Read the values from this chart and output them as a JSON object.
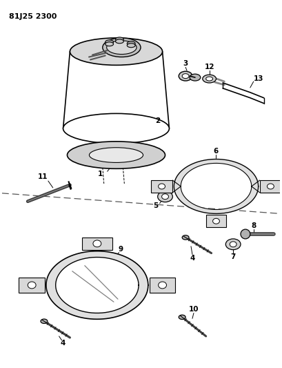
{
  "title": "81J25 2300",
  "background_color": "#ffffff",
  "line_color": "#000000",
  "fig_width": 4.09,
  "fig_height": 5.33,
  "dpi": 100
}
